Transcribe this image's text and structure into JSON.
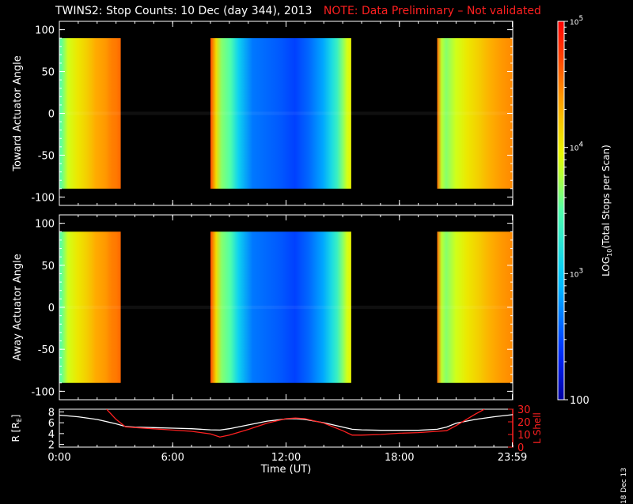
{
  "title": "TWINS2: Stop Counts: 10 Dec (day 344), 2013",
  "note": "NOTE: Data Preliminary – Not validated",
  "side_date": "18 Dec 13",
  "colors": {
    "background": "#000000",
    "note": "#ff2020",
    "r_line": "#ffffff",
    "lshell_line": "#ff2020"
  },
  "chart_data": [
    {
      "type": "heatmap",
      "name": "toward",
      "ylabel": "Toward Actuator Angle",
      "xlim": [
        0,
        24
      ],
      "ylim": [
        -110,
        110
      ],
      "yticks": [
        -100,
        -50,
        0,
        50,
        100
      ],
      "data_extent": [
        -90,
        90
      ],
      "data_intervals_hours": [
        [
          0.0,
          3.25
        ],
        [
          8.0,
          15.45
        ],
        [
          20.0,
          24.0
        ]
      ]
    },
    {
      "type": "heatmap",
      "name": "away",
      "ylabel": "Away Actuator Angle",
      "xlim": [
        0,
        24
      ],
      "ylim": [
        -110,
        110
      ],
      "yticks": [
        -100,
        -50,
        0,
        50,
        100
      ],
      "data_extent": [
        -90,
        90
      ],
      "data_intervals_hours": [
        [
          0.0,
          3.25
        ],
        [
          8.0,
          15.45
        ],
        [
          20.0,
          24.0
        ]
      ]
    },
    {
      "type": "line",
      "name": "orbit",
      "xlabel": "Time (UT)",
      "xticks": [
        "0:00",
        "6:00",
        "12:00",
        "18:00",
        "23:59"
      ],
      "xtick_hours": [
        0,
        6,
        12,
        18,
        23.98
      ],
      "xlim": [
        0,
        24
      ],
      "left_axis": {
        "label": "R [R",
        "label_sub": "E",
        "label_end": "]",
        "ylim": [
          1.5,
          8.5
        ],
        "ticks": [
          "2",
          "4",
          "6",
          "8"
        ]
      },
      "right_axis": {
        "label": "L Shell",
        "ylim": [
          0,
          30
        ],
        "ticks": [
          "0",
          "10",
          "20",
          "30"
        ]
      },
      "series": [
        {
          "name": "R [RE]",
          "axis": "left",
          "x": [
            0,
            1,
            2,
            3,
            3.5,
            4,
            5,
            6,
            7,
            8,
            8.5,
            9,
            10,
            11,
            12,
            12.5,
            13,
            14,
            15,
            15.5,
            16,
            17,
            18,
            19,
            20,
            20.5,
            21,
            22,
            23,
            24
          ],
          "y": [
            7.4,
            7.1,
            6.6,
            5.8,
            5.3,
            5.2,
            5.1,
            5.0,
            4.9,
            4.7,
            4.65,
            4.9,
            5.6,
            6.3,
            6.7,
            6.75,
            6.6,
            6.0,
            5.2,
            4.8,
            4.7,
            4.6,
            4.6,
            4.6,
            4.8,
            5.2,
            5.9,
            6.6,
            7.1,
            7.5
          ]
        },
        {
          "name": "L Shell",
          "axis": "right",
          "x": [
            2.5,
            3.0,
            3.5,
            4,
            5,
            6,
            7,
            8,
            8.5,
            9,
            10,
            11,
            12,
            12.5,
            13,
            14,
            15,
            15.5,
            16,
            17,
            18,
            19,
            20,
            20.5,
            21,
            22,
            22.5
          ],
          "y": [
            30,
            22,
            16,
            15.5,
            14.5,
            13.5,
            12.5,
            10.5,
            8,
            9.5,
            14,
            19,
            22.5,
            23,
            22.5,
            19,
            13,
            9.5,
            9.5,
            10,
            11,
            11.5,
            12.5,
            13,
            17,
            26,
            30
          ]
        }
      ]
    },
    {
      "type": "heatmap",
      "name": "colorbar",
      "label": "LOG",
      "label_sub": "10",
      "label_end": "(Total Stops per Scan)",
      "ylim": [
        100,
        100000
      ],
      "log": true,
      "tick_labels": [
        {
          "base": "10",
          "exp": "5",
          "value": 100000
        },
        {
          "base": "10",
          "exp": "4",
          "value": 10000
        },
        {
          "base": "10",
          "exp": "3",
          "value": 1000
        },
        {
          "base": "100",
          "exp": "",
          "value": 100
        }
      ]
    }
  ]
}
